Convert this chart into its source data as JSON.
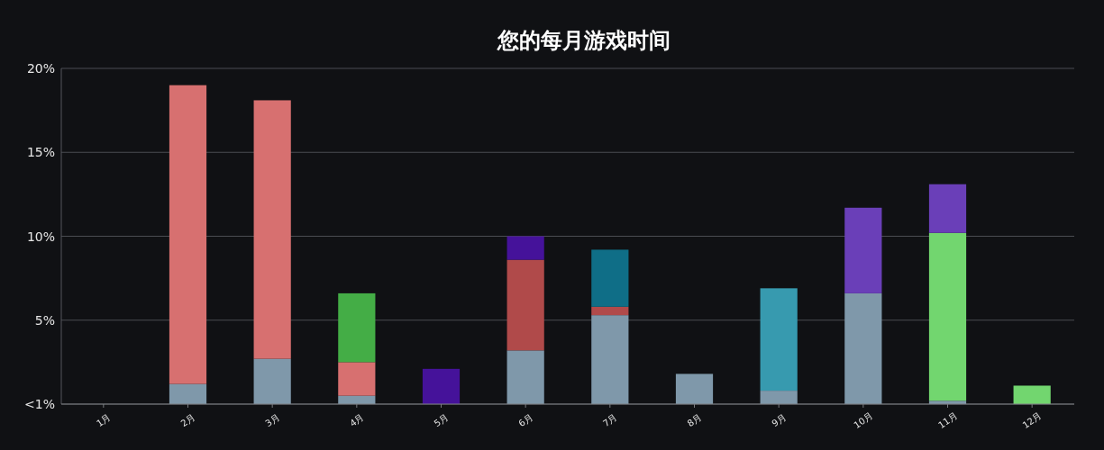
{
  "chart_data": {
    "type": "bar",
    "title": "您的每月游戏时间",
    "stacked": true,
    "grid": "y",
    "categories": [
      "1月",
      "2月",
      "3月",
      "4月",
      "5月",
      "6月",
      "7月",
      "8月",
      "9月",
      "10月",
      "11月",
      "12月"
    ],
    "series": [
      {
        "values": [
          null,
          1.2,
          2.7,
          0.5,
          null,
          3.2,
          5.3,
          1.8,
          0.8,
          6.6,
          0.2,
          null
        ],
        "colors": [
          null,
          "#7f98aa",
          "#7f98aa",
          "#7f98aa",
          null,
          "#7f98aa",
          "#7f98aa",
          "#7f98aa",
          "#7f98aa",
          "#7f98aa",
          "#7f98aa",
          null
        ]
      },
      {
        "values": [
          null,
          17.8,
          15.4,
          2.0,
          2.1,
          5.4,
          0.5,
          null,
          6.1,
          5.1,
          10.0,
          1.1
        ],
        "colors": [
          null,
          "#d77070",
          "#d77070",
          "#d77070",
          "#45129a",
          "#b04a4a",
          "#b04a4a",
          null,
          "#379aaf",
          "#6a3fb8",
          "#72d66f",
          "#72d66f"
        ]
      },
      {
        "values": [
          null,
          null,
          null,
          4.1,
          null,
          1.4,
          3.4,
          null,
          null,
          null,
          2.9,
          null
        ],
        "colors": [
          null,
          null,
          null,
          "#44ad46",
          null,
          "#45129a",
          "#0f6e87",
          null,
          null,
          null,
          "#6a3fb8",
          null
        ]
      }
    ],
    "ylim": [
      0,
      20
    ],
    "yticks": [
      {
        "value": 0,
        "label": "<1%"
      },
      {
        "value": 5,
        "label": "5%"
      },
      {
        "value": 10,
        "label": "10%"
      },
      {
        "value": 15,
        "label": "15%"
      },
      {
        "value": 20,
        "label": "20%"
      }
    ]
  }
}
